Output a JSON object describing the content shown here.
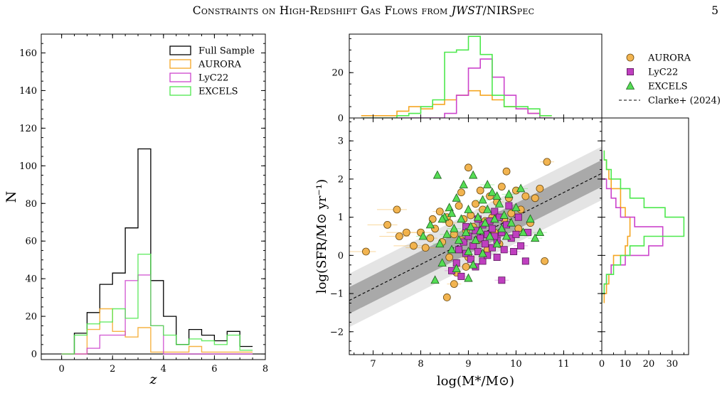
{
  "header": {
    "running_title": "Constraints on High-Redshift Gas Flows from JWST/NIRSpec",
    "page_number": "5"
  },
  "colors": {
    "full_sample": "#000000",
    "aurora": "#f5a623",
    "aurora_fill": "#f2b450",
    "lyc22": "#cc44cc",
    "lyc22_fill": "#bf3fbf",
    "excels": "#4de84d",
    "excels_fill": "#55dd55",
    "band_outer": "#e4e4e4",
    "band_inner": "#a9a9a9"
  },
  "chart_data": [
    {
      "type": "histogram",
      "xlabel": "z",
      "ylabel": "N",
      "xlim": [
        -0.8,
        8
      ],
      "ylim": [
        -3,
        170
      ],
      "x_ticks": [
        "0",
        "2",
        "4",
        "6",
        "8"
      ],
      "y_ticks": [
        "0",
        "20",
        "40",
        "60",
        "80",
        "100",
        "120",
        "140",
        "160"
      ],
      "bin_edges": [
        0,
        0.5,
        1,
        1.5,
        2,
        2.5,
        3,
        3.5,
        4,
        4.5,
        5,
        5.5,
        6,
        6.5,
        7,
        7.5
      ],
      "legend_position": "top-right",
      "series": [
        {
          "name": "Full Sample",
          "values": [
            0,
            11,
            22,
            37,
            43,
            67,
            109,
            39,
            20,
            5,
            13,
            10,
            7,
            12,
            4
          ]
        },
        {
          "name": "AURORA",
          "values": [
            0,
            0,
            13,
            24,
            12,
            9,
            14,
            1,
            1,
            1,
            4,
            1,
            1,
            1,
            1
          ]
        },
        {
          "name": "LyC22",
          "values": [
            0,
            0,
            3,
            10,
            10,
            39,
            42,
            15,
            0,
            0,
            0,
            0,
            0,
            0,
            0
          ]
        },
        {
          "name": "EXCELS",
          "values": [
            0,
            10,
            16,
            17,
            24,
            19,
            53,
            15,
            10,
            5,
            8,
            7,
            5,
            10,
            2
          ]
        }
      ]
    },
    {
      "type": "scatter",
      "xlabel": "log(M*/M⊙)",
      "ylabel": "log(SFR/M⊙ yr⁻¹)",
      "xlim": [
        6.5,
        11.8
      ],
      "ylim": [
        -2.6,
        3.6
      ],
      "x_ticks": [
        "7",
        "8",
        "9",
        "10",
        "11"
      ],
      "y_ticks": [
        "−2",
        "−1",
        "0",
        "1",
        "2",
        "3"
      ],
      "legend_position": "top-right",
      "relation": {
        "name": "Clarke+ (2024)",
        "style": "dashed",
        "x": [
          6.5,
          11.8
        ],
        "y": [
          -1.18,
          2.15
        ],
        "inner_scatter": 0.35,
        "outer_scatter": 0.7
      },
      "series": [
        {
          "name": "AURORA",
          "marker": "circle",
          "points": [
            [
              6.85,
              0.1
            ],
            [
              7.3,
              0.8
            ],
            [
              7.5,
              1.2
            ],
            [
              7.55,
              0.5
            ],
            [
              7.7,
              0.6
            ],
            [
              7.85,
              0.25
            ],
            [
              8.0,
              0.6
            ],
            [
              8.1,
              0.2
            ],
            [
              8.3,
              0.7
            ],
            [
              8.4,
              1.15
            ],
            [
              8.45,
              0.35
            ],
            [
              8.55,
              1.0
            ],
            [
              8.6,
              0.85
            ],
            [
              8.6,
              -0.05
            ],
            [
              8.7,
              0.55
            ],
            [
              8.7,
              -0.75
            ],
            [
              8.8,
              1.3
            ],
            [
              8.85,
              1.65
            ],
            [
              8.85,
              0.4
            ],
            [
              8.9,
              0.95
            ],
            [
              8.95,
              0.65
            ],
            [
              8.95,
              -0.3
            ],
            [
              9.0,
              2.3
            ],
            [
              9.05,
              1.05
            ],
            [
              9.1,
              0.75
            ],
            [
              9.15,
              1.35
            ],
            [
              9.2,
              0.4
            ],
            [
              9.3,
              1.2
            ],
            [
              9.35,
              0.9
            ],
            [
              9.4,
              0.15
            ],
            [
              9.45,
              1.55
            ],
            [
              9.5,
              1.0
            ],
            [
              9.55,
              0.6
            ],
            [
              9.6,
              1.4
            ],
            [
              9.65,
              0.3
            ],
            [
              9.7,
              1.8
            ],
            [
              9.75,
              0.95
            ],
            [
              9.8,
              2.2
            ],
            [
              9.85,
              1.5
            ],
            [
              9.9,
              1.1
            ],
            [
              10.0,
              1.7
            ],
            [
              10.05,
              0.7
            ],
            [
              10.1,
              1.2
            ],
            [
              10.2,
              1.55
            ],
            [
              10.3,
              0.85
            ],
            [
              10.4,
              1.5
            ],
            [
              10.5,
              1.75
            ],
            [
              10.6,
              -0.15
            ],
            [
              10.65,
              2.45
            ],
            [
              8.75,
              -0.45
            ],
            [
              8.55,
              -1.1
            ],
            [
              9.0,
              -0.05
            ],
            [
              8.25,
              0.95
            ],
            [
              9.25,
              1.7
            ],
            [
              8.2,
              0.45
            ]
          ]
        },
        {
          "name": "LyC22",
          "marker": "square",
          "points": [
            [
              8.65,
              -0.4
            ],
            [
              8.75,
              -0.2
            ],
            [
              8.8,
              0.15
            ],
            [
              8.85,
              -0.55
            ],
            [
              8.9,
              0.35
            ],
            [
              8.95,
              0.05
            ],
            [
              9.0,
              0.5
            ],
            [
              9.05,
              -0.1
            ],
            [
              9.1,
              0.25
            ],
            [
              9.15,
              0.65
            ],
            [
              9.15,
              -0.3
            ],
            [
              9.2,
              0.1
            ],
            [
              9.25,
              0.45
            ],
            [
              9.3,
              -0.15
            ],
            [
              9.3,
              0.8
            ],
            [
              9.35,
              0.3
            ],
            [
              9.4,
              0.55
            ],
            [
              9.4,
              0.0
            ],
            [
              9.45,
              0.9
            ],
            [
              9.5,
              0.2
            ],
            [
              9.5,
              0.7
            ],
            [
              9.55,
              1.15
            ],
            [
              9.6,
              0.4
            ],
            [
              9.6,
              -0.05
            ],
            [
              9.65,
              1.0
            ],
            [
              9.7,
              0.6
            ],
            [
              9.75,
              0.15
            ],
            [
              9.8,
              0.8
            ],
            [
              9.85,
              1.3
            ],
            [
              9.9,
              0.45
            ],
            [
              9.95,
              0.1
            ],
            [
              10.0,
              0.55
            ],
            [
              10.05,
              1.0
            ],
            [
              10.1,
              0.25
            ],
            [
              10.2,
              -0.15
            ],
            [
              10.25,
              0.6
            ],
            [
              9.7,
              -0.65
            ],
            [
              9.2,
              0.95
            ],
            [
              8.95,
              0.75
            ],
            [
              9.55,
              0.5
            ]
          ]
        },
        {
          "name": "EXCELS",
          "marker": "triangle",
          "points": [
            [
              8.05,
              0.5
            ],
            [
              8.2,
              0.8
            ],
            [
              8.35,
              2.1
            ],
            [
              8.4,
              0.3
            ],
            [
              8.45,
              -0.2
            ],
            [
              8.5,
              1.0
            ],
            [
              8.55,
              0.55
            ],
            [
              8.6,
              1.25
            ],
            [
              8.65,
              0.15
            ],
            [
              8.7,
              0.7
            ],
            [
              8.75,
              1.5
            ],
            [
              8.75,
              -0.35
            ],
            [
              8.8,
              0.4
            ],
            [
              8.85,
              0.95
            ],
            [
              8.9,
              1.85
            ],
            [
              8.95,
              0.6
            ],
            [
              9.0,
              0.1
            ],
            [
              9.0,
              1.2
            ],
            [
              9.05,
              0.75
            ],
            [
              9.1,
              2.1
            ],
            [
              9.1,
              -0.25
            ],
            [
              9.15,
              0.4
            ],
            [
              9.2,
              1.0
            ],
            [
              9.25,
              0.65
            ],
            [
              9.3,
              1.45
            ],
            [
              9.3,
              0.05
            ],
            [
              9.35,
              0.85
            ],
            [
              9.4,
              1.2
            ],
            [
              9.45,
              0.5
            ],
            [
              9.5,
              1.65
            ],
            [
              9.55,
              0.95
            ],
            [
              9.6,
              0.3
            ],
            [
              9.65,
              1.35
            ],
            [
              9.7,
              0.7
            ],
            [
              9.75,
              1.05
            ],
            [
              9.8,
              0.5
            ],
            [
              9.85,
              1.6
            ],
            [
              9.9,
              0.85
            ],
            [
              10.0,
              1.25
            ],
            [
              10.1,
              1.75
            ],
            [
              10.15,
              0.6
            ],
            [
              10.3,
              0.95
            ],
            [
              10.5,
              0.6
            ],
            [
              8.3,
              -0.65
            ],
            [
              9.0,
              -0.6
            ],
            [
              9.4,
              1.85
            ],
            [
              8.65,
              1.1
            ],
            [
              9.6,
              1.55
            ],
            [
              10.4,
              0.45
            ],
            [
              8.45,
              0.95
            ]
          ]
        }
      ]
    },
    {
      "type": "histogram",
      "panel": "top marginal",
      "y_ticks": [
        "0",
        "20"
      ],
      "ylim": [
        0,
        37
      ],
      "bin_edges": [
        6.75,
        7.0,
        7.25,
        7.5,
        7.75,
        8.0,
        8.25,
        8.5,
        8.75,
        9.0,
        9.25,
        9.5,
        9.75,
        10.0,
        10.25,
        10.5,
        10.75
      ],
      "series": [
        {
          "name": "AURORA",
          "values": [
            1,
            1,
            1,
            3,
            5,
            4,
            6,
            8,
            10,
            12,
            10,
            8,
            5,
            4,
            2,
            1
          ]
        },
        {
          "name": "LyC22",
          "values": [
            0,
            0,
            0,
            0,
            0,
            0,
            0,
            2,
            10,
            22,
            26,
            18,
            10,
            4,
            2,
            0
          ]
        },
        {
          "name": "EXCELS",
          "values": [
            0,
            0,
            0,
            1,
            2,
            5,
            8,
            29,
            30,
            36,
            28,
            10,
            5,
            5,
            4,
            1
          ]
        }
      ]
    },
    {
      "type": "histogram",
      "panel": "right marginal",
      "x_ticks": [
        "0",
        "10",
        "20",
        "30"
      ],
      "xlim": [
        0,
        37
      ],
      "bin_edges": [
        -1.25,
        -1.0,
        -0.75,
        -0.5,
        -0.25,
        0.0,
        0.25,
        0.5,
        0.75,
        1.0,
        1.25,
        1.5,
        1.75,
        2.0,
        2.25,
        2.5,
        2.75
      ],
      "series": [
        {
          "name": "AURORA",
          "values": [
            1,
            2,
            3,
            4,
            5,
            10,
            11,
            12,
            12,
            10,
            8,
            8,
            4,
            3,
            2,
            1
          ]
        },
        {
          "name": "LyC22",
          "values": [
            0,
            1,
            2,
            4,
            10,
            20,
            26,
            26,
            14,
            8,
            6,
            4,
            2,
            0,
            0,
            0
          ]
        },
        {
          "name": "EXCELS",
          "values": [
            0,
            1,
            2,
            5,
            8,
            12,
            18,
            35,
            35,
            27,
            18,
            12,
            8,
            4,
            2,
            1
          ]
        }
      ]
    }
  ]
}
